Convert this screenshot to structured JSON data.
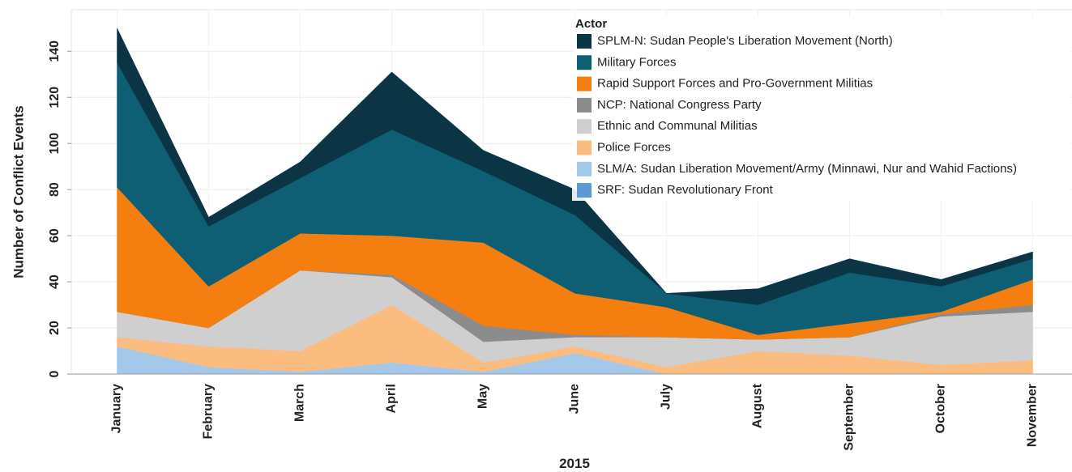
{
  "chart_data": {
    "type": "stacked_area",
    "ylabel": "Number of Conflict Events",
    "xlabel": "2015",
    "legend_title": "Actor",
    "legend": "top-right",
    "grid": true,
    "categories": [
      "January",
      "February",
      "March",
      "April",
      "May",
      "June",
      "July",
      "August",
      "September",
      "October",
      "November"
    ],
    "ylim": [
      0,
      158
    ],
    "yticks": [
      0,
      20,
      40,
      60,
      80,
      100,
      120,
      140
    ],
    "series": [
      {
        "name": "SRF: Sudan Revolutionary Front",
        "color": "#5b9bd5",
        "values": [
          0,
          0,
          0,
          0,
          0,
          0,
          0,
          0,
          0,
          0,
          0
        ]
      },
      {
        "name": "SLM/A: Sudan Liberation Movement/Army (Minnawi, Nur and Wahid Factions)",
        "color": "#a4c8ea",
        "values": [
          12,
          3,
          1,
          5,
          1,
          9,
          0,
          0,
          0,
          0,
          0
        ]
      },
      {
        "name": "Police Forces",
        "color": "#fbbc80",
        "values": [
          4,
          9,
          9,
          25,
          4,
          3,
          3,
          10,
          8,
          4,
          6
        ]
      },
      {
        "name": "Ethnic and Communal Militias",
        "color": "#cfcfcf",
        "values": [
          11,
          8,
          35,
          12,
          9,
          4,
          13,
          5,
          8,
          21,
          21
        ]
      },
      {
        "name": "NCP: National Congress Party",
        "color": "#8c8c8c",
        "values": [
          0,
          0,
          0,
          1,
          7,
          1,
          0,
          0,
          0,
          1,
          3
        ]
      },
      {
        "name": "Rapid Support Forces and Pro-Government Militias",
        "color": "#f47e0f",
        "values": [
          54,
          18,
          16,
          17,
          36,
          18,
          13,
          2,
          6,
          1,
          11
        ]
      },
      {
        "name": "Military Forces",
        "color": "#0e5e74",
        "values": [
          54,
          26,
          24,
          46,
          31,
          34,
          6,
          13,
          22,
          11,
          9
        ]
      },
      {
        "name": "SPLM-N: Sudan People's Liberation Movement (North)",
        "color": "#0b3544",
        "values": [
          15,
          4,
          7,
          25,
          9,
          11,
          0,
          7,
          6,
          3,
          3
        ]
      }
    ]
  }
}
